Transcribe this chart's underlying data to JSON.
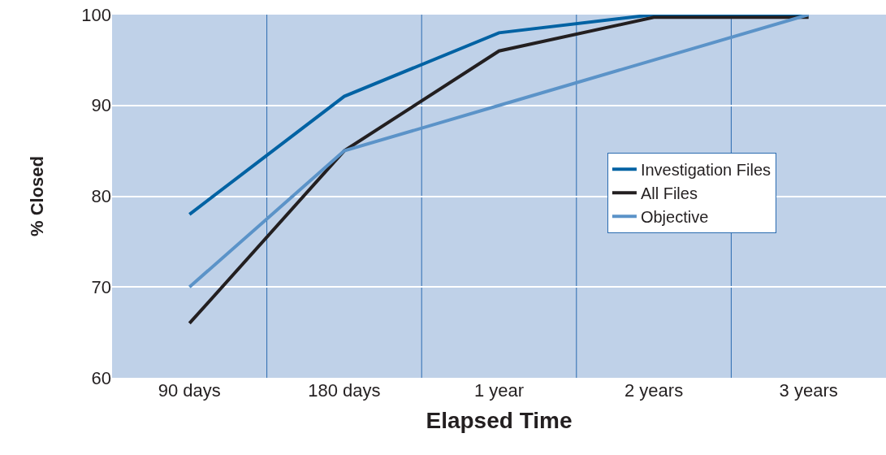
{
  "chart_data": {
    "type": "line",
    "xlabel": "Elapsed Time",
    "ylabel": "% Closed",
    "categories": [
      "90 days",
      "180 days",
      "1 year",
      "2 years",
      "3 years"
    ],
    "series": [
      {
        "name": "Investigation Files",
        "color": "#0062a3",
        "values": [
          78,
          91,
          98,
          100,
          100
        ]
      },
      {
        "name": "All Files",
        "color": "#231f20",
        "values": [
          66,
          85,
          96,
          99.7,
          99.7
        ]
      },
      {
        "name": "Objective",
        "color": "#5b93c8",
        "values": [
          70,
          85,
          90,
          95,
          100
        ]
      }
    ],
    "ylim": [
      60,
      100
    ],
    "yticks": [
      60,
      70,
      80,
      90,
      100
    ],
    "grid": true,
    "legend": "right",
    "marker": "none",
    "line_style": "solid"
  }
}
